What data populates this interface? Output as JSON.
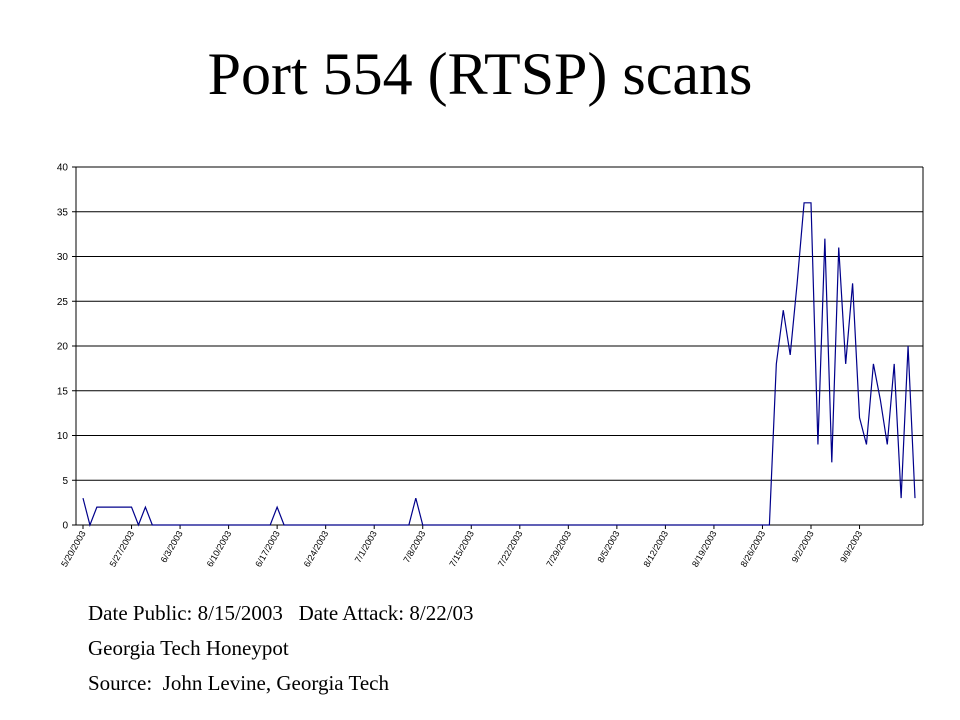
{
  "slide": {
    "title": "Port 554 (RTSP) scans",
    "notes": [
      "Date Public: 8/15/2003   Date Attack: 8/22/03",
      "Georgia Tech Honeypot",
      "Source:  John Levine, Georgia Tech"
    ]
  },
  "chart_data": {
    "type": "line",
    "title": "",
    "xlabel": "",
    "ylabel": "",
    "ylim": [
      0,
      40
    ],
    "yticks": [
      0,
      5,
      10,
      15,
      20,
      25,
      30,
      35,
      40
    ],
    "grid": true,
    "legend": "none",
    "start_date": "5/20/2003",
    "x_tick_labels": [
      "5/20/2003",
      "5/27/2003",
      "6/3/2003",
      "6/10/2003",
      "6/17/2003",
      "6/24/2003",
      "7/1/2003",
      "7/8/2003",
      "7/15/2003",
      "7/22/2003",
      "7/29/2003",
      "8/5/2003",
      "8/12/2003",
      "8/19/2003",
      "8/26/2003",
      "9/2/2003",
      "9/9/2003"
    ],
    "series": [
      {
        "color": "#00008B",
        "values": [
          3,
          0,
          2,
          2,
          2,
          2,
          2,
          2,
          0,
          2,
          0,
          0,
          0,
          0,
          0,
          0,
          0,
          0,
          0,
          0,
          0,
          0,
          0,
          0,
          0,
          0,
          0,
          0,
          2,
          0,
          0,
          0,
          0,
          0,
          0,
          0,
          0,
          0,
          0,
          0,
          0,
          0,
          0,
          0,
          0,
          0,
          0,
          0,
          3,
          0,
          0,
          0,
          0,
          0,
          0,
          0,
          0,
          0,
          0,
          0,
          0,
          0,
          0,
          0,
          0,
          0,
          0,
          0,
          0,
          0,
          0,
          0,
          0,
          0,
          0,
          0,
          0,
          0,
          0,
          0,
          0,
          0,
          0,
          0,
          0,
          0,
          0,
          0,
          0,
          0,
          0,
          0,
          0,
          0,
          0,
          0,
          0,
          0,
          0,
          0,
          18,
          24,
          19,
          27,
          36,
          36,
          9,
          32,
          7,
          31,
          18,
          27,
          12,
          9,
          18,
          14,
          9,
          18,
          3,
          20,
          3
        ]
      }
    ]
  }
}
